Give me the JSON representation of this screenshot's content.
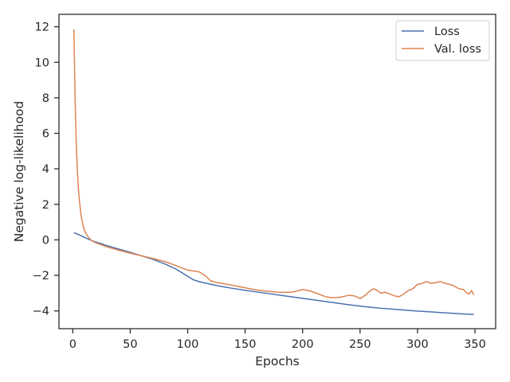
{
  "chart_data": {
    "type": "line",
    "title": "",
    "xlabel": "Epochs",
    "ylabel": "Negative log-likelihood",
    "xlim": [
      -12,
      368
    ],
    "ylim": [
      -5.0,
      12.7
    ],
    "xticks": [
      0,
      50,
      100,
      150,
      200,
      250,
      300,
      350
    ],
    "yticks": [
      -4,
      -2,
      0,
      2,
      4,
      6,
      8,
      10,
      12
    ],
    "grid": false,
    "legend_position": "top-right",
    "series": [
      {
        "name": "Loss",
        "color": "#4c72b0",
        "x": [
          1,
          5,
          10,
          15,
          20,
          25,
          30,
          40,
          50,
          60,
          70,
          80,
          90,
          95,
          100,
          105,
          110,
          120,
          130,
          140,
          150,
          160,
          170,
          180,
          190,
          200,
          210,
          220,
          230,
          240,
          250,
          260,
          270,
          280,
          290,
          300,
          310,
          320,
          330,
          340,
          349
        ],
        "values": [
          0.4,
          0.3,
          0.15,
          0.0,
          -0.12,
          -0.22,
          -0.33,
          -0.52,
          -0.7,
          -0.9,
          -1.1,
          -1.35,
          -1.65,
          -1.85,
          -2.05,
          -2.25,
          -2.35,
          -2.5,
          -2.63,
          -2.74,
          -2.84,
          -2.93,
          -3.02,
          -3.11,
          -3.2,
          -3.29,
          -3.38,
          -3.47,
          -3.56,
          -3.65,
          -3.73,
          -3.8,
          -3.86,
          -3.91,
          -3.96,
          -4.01,
          -4.05,
          -4.09,
          -4.13,
          -4.17,
          -4.2
        ]
      },
      {
        "name": "Val. loss",
        "color": "#dd8452",
        "x": [
          1,
          2,
          3,
          4,
          5,
          6,
          7,
          8,
          9,
          10,
          12,
          14,
          16,
          18,
          20,
          25,
          30,
          40,
          50,
          60,
          70,
          80,
          90,
          95,
          100,
          105,
          110,
          115,
          120,
          125,
          130,
          140,
          150,
          160,
          170,
          180,
          190,
          195,
          200,
          205,
          210,
          215,
          220,
          225,
          230,
          235,
          240,
          245,
          250,
          255,
          258,
          262,
          265,
          268,
          272,
          276,
          280,
          284,
          288,
          292,
          296,
          300,
          304,
          308,
          312,
          316,
          320,
          324,
          328,
          332,
          336,
          340,
          343,
          345,
          347,
          349
        ],
        "values": [
          11.85,
          8.0,
          5.5,
          3.9,
          2.8,
          2.1,
          1.5,
          1.1,
          0.8,
          0.55,
          0.3,
          0.12,
          -0.02,
          -0.1,
          -0.16,
          -0.28,
          -0.4,
          -0.58,
          -0.75,
          -0.9,
          -1.05,
          -1.22,
          -1.45,
          -1.58,
          -1.7,
          -1.75,
          -1.8,
          -2.0,
          -2.3,
          -2.4,
          -2.45,
          -2.57,
          -2.7,
          -2.82,
          -2.9,
          -2.95,
          -2.95,
          -2.88,
          -2.8,
          -2.85,
          -2.95,
          -3.08,
          -3.2,
          -3.25,
          -3.25,
          -3.2,
          -3.12,
          -3.15,
          -3.3,
          -3.1,
          -2.9,
          -2.75,
          -2.85,
          -3.0,
          -2.95,
          -3.05,
          -3.15,
          -3.2,
          -3.05,
          -2.85,
          -2.75,
          -2.5,
          -2.45,
          -2.35,
          -2.45,
          -2.4,
          -2.35,
          -2.45,
          -2.5,
          -2.6,
          -2.75,
          -2.8,
          -3.0,
          -3.05,
          -2.85,
          -3.1
        ]
      }
    ]
  }
}
